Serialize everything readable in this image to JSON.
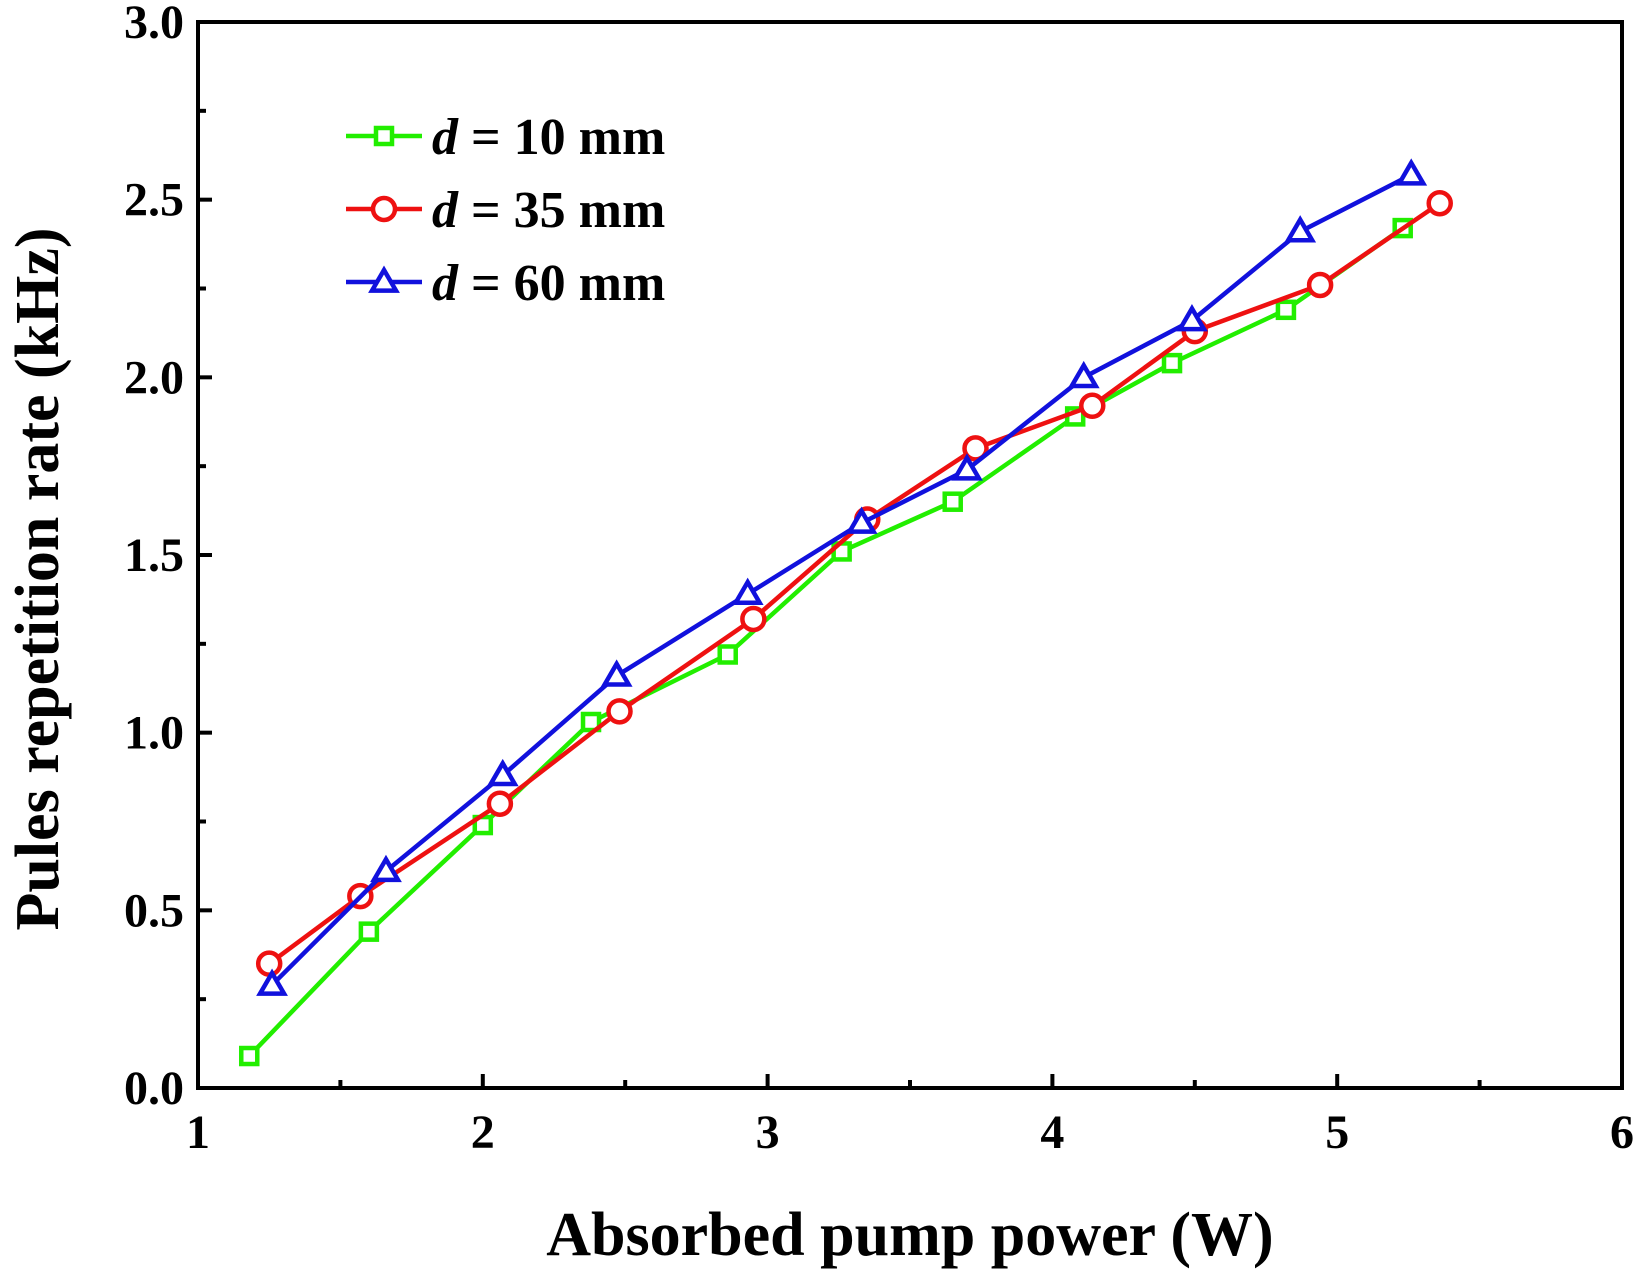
{
  "chart_data": {
    "type": "line",
    "title": "",
    "xlabel": "Absorbed pump power (W)",
    "ylabel": "Pules repetition rate (kHz)",
    "xlim": [
      1,
      6
    ],
    "ylim": [
      0.0,
      3.0
    ],
    "xticks": [
      1,
      2,
      3,
      4,
      5,
      6
    ],
    "xtick_labels": [
      "1",
      "2",
      "3",
      "4",
      "5",
      "6"
    ],
    "yticks": [
      0.0,
      0.5,
      1.0,
      1.5,
      2.0,
      2.5,
      3.0
    ],
    "ytick_labels": [
      "0.0",
      "0.5",
      "1.0",
      "1.5",
      "2.0",
      "2.5",
      "3.0"
    ],
    "grid": false,
    "legend_position": "top-left",
    "series": [
      {
        "name": "d = 10 mm",
        "legend_var": "d",
        "legend_rest": " = 10 mm",
        "color": "#22ee00",
        "marker": "square",
        "x": [
          1.18,
          1.6,
          2.0,
          2.38,
          2.86,
          3.26,
          3.65,
          4.08,
          4.42,
          4.82,
          5.23
        ],
        "y": [
          0.09,
          0.44,
          0.74,
          1.03,
          1.22,
          1.51,
          1.65,
          1.89,
          2.04,
          2.19,
          2.42
        ]
      },
      {
        "name": "d = 35 mm",
        "legend_var": "d",
        "legend_rest": " = 35 mm",
        "color": "#ee1111",
        "marker": "circle",
        "x": [
          1.25,
          1.57,
          2.06,
          2.48,
          2.95,
          3.35,
          3.73,
          4.14,
          4.5,
          4.94,
          5.36
        ],
        "y": [
          0.35,
          0.54,
          0.8,
          1.06,
          1.32,
          1.6,
          1.8,
          1.92,
          2.13,
          2.26,
          2.49
        ]
      },
      {
        "name": "d = 60 mm",
        "legend_var": "d",
        "legend_rest": " = 60 mm",
        "color": "#1111dd",
        "marker": "triangle",
        "x": [
          1.26,
          1.66,
          2.07,
          2.47,
          2.93,
          3.33,
          3.7,
          4.11,
          4.49,
          4.87,
          5.26
        ],
        "y": [
          0.29,
          0.61,
          0.88,
          1.16,
          1.39,
          1.59,
          1.74,
          2.0,
          2.16,
          2.41,
          2.57
        ]
      }
    ]
  }
}
